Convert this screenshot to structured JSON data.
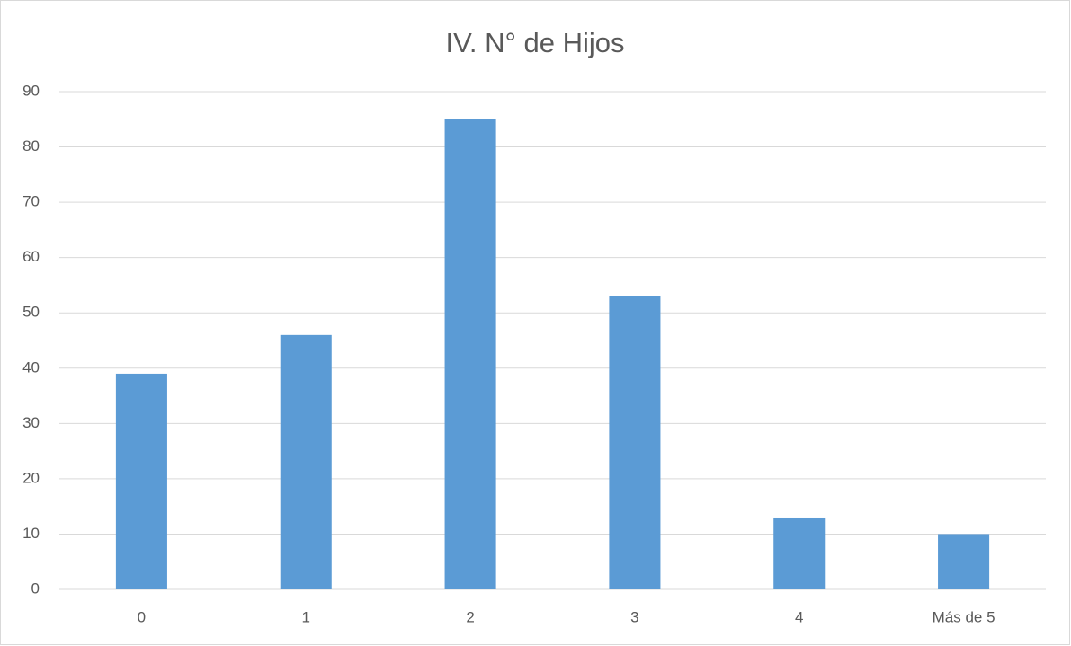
{
  "chart_data": {
    "type": "bar",
    "title": "IV. N° de Hijos",
    "categories": [
      "0",
      "1",
      "2",
      "3",
      "4",
      "Más de 5"
    ],
    "values": [
      39,
      46,
      85,
      53,
      13,
      10
    ],
    "color": "#5b9bd5",
    "ylim": [
      0,
      90
    ],
    "yticks": [
      0,
      10,
      20,
      30,
      40,
      50,
      60,
      70,
      80,
      90
    ],
    "grid": true
  }
}
